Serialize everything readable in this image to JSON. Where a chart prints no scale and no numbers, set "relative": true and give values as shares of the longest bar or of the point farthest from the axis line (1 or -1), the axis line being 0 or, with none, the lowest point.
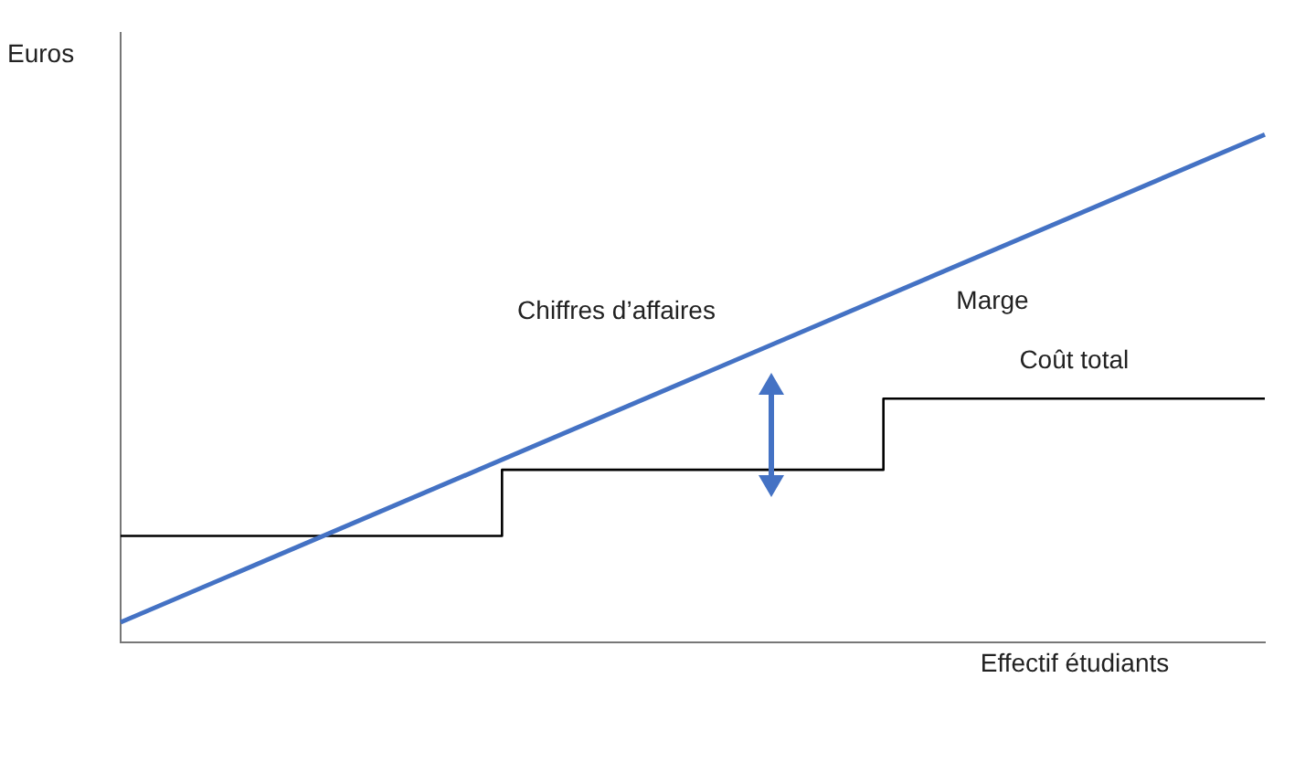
{
  "chart_data": {
    "type": "line",
    "relative": true,
    "xlabel": "Effectif étudiants",
    "ylabel": "Euros",
    "categories": [
      null,
      null,
      null,
      null
    ],
    "series": [
      {
        "name": "Chiffres d’affaires",
        "type": "line",
        "color": "#4472c4",
        "values": [
          0.04,
          null,
          null,
          1
        ]
      },
      {
        "name": "Coût total",
        "type": "step",
        "color": "#000000",
        "values": [
          0.21,
          0.34,
          0.48,
          0.48
        ]
      }
    ],
    "annotations": [
      "Marge"
    ],
    "legend": false,
    "grid": false,
    "marker": "none"
  }
}
